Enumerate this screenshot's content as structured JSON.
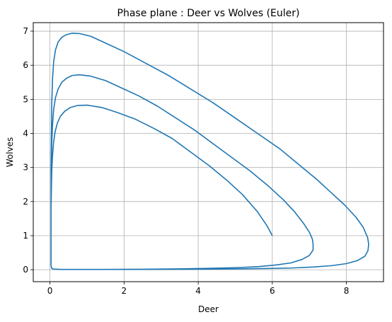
{
  "chart_data": {
    "type": "line",
    "title": "Phase plane : Deer vs Wolves (Euler)",
    "xlabel": "Deer",
    "ylabel": "Wolves",
    "xlim": [
      -0.45,
      9.0
    ],
    "ylim": [
      -0.35,
      7.25
    ],
    "x_ticks": [
      0,
      2,
      4,
      6,
      8
    ],
    "y_ticks": [
      0,
      1,
      2,
      3,
      4,
      5,
      6,
      7
    ],
    "grid": true,
    "legend": "none",
    "line_color": "#1f77b4",
    "series": [
      {
        "x": [
          6.0,
          5.85,
          5.6,
          5.2,
          4.8,
          4.3,
          3.8,
          3.3,
          2.8,
          2.3,
          1.8,
          1.4,
          1.0,
          0.75,
          0.55,
          0.4,
          0.28,
          0.2,
          0.14,
          0.1,
          0.07,
          0.05,
          0.04,
          0.03,
          0.03,
          0.03,
          0.03,
          0.03,
          0.04,
          0.06,
          0.1,
          0.3,
          0.8,
          1.5,
          2.5,
          3.5,
          4.3,
          5.0,
          5.6,
          6.1,
          6.5,
          6.8,
          7.0,
          7.1,
          7.1,
          7.08,
          7.0,
          6.85,
          6.6,
          6.3,
          5.9,
          5.4,
          4.9,
          4.4,
          3.9,
          3.4,
          2.9,
          2.4,
          1.9,
          1.5,
          1.1,
          0.8,
          0.6,
          0.45,
          0.32,
          0.22,
          0.15,
          0.1,
          0.07,
          0.05,
          0.04,
          0.03,
          0.03,
          0.03,
          0.03,
          0.03,
          0.04,
          0.06,
          0.1,
          0.3,
          1.0,
          2.0,
          3.0,
          4.0,
          5.0,
          5.8,
          6.5,
          7.1,
          7.6,
          8.0,
          8.3,
          8.5,
          8.58,
          8.6,
          8.57,
          8.45,
          8.25,
          7.95,
          7.6,
          7.2,
          6.7,
          6.2,
          5.6,
          5.0,
          4.4,
          3.8,
          3.2,
          2.6,
          2.0,
          1.5,
          1.1,
          0.8,
          0.6,
          0.45,
          0.32,
          0.22,
          0.15,
          0.1,
          0.07,
          0.05,
          0.04,
          0.03,
          0.03,
          0.03
        ],
        "y": [
          1.0,
          1.3,
          1.7,
          2.2,
          2.6,
          3.05,
          3.45,
          3.85,
          4.15,
          4.42,
          4.62,
          4.76,
          4.83,
          4.82,
          4.76,
          4.65,
          4.5,
          4.3,
          4.05,
          3.75,
          3.35,
          2.9,
          2.4,
          1.8,
          1.2,
          0.7,
          0.35,
          0.15,
          0.07,
          0.03,
          0.02,
          0.01,
          0.01,
          0.01,
          0.015,
          0.025,
          0.04,
          0.06,
          0.09,
          0.14,
          0.2,
          0.3,
          0.42,
          0.58,
          0.75,
          0.9,
          1.1,
          1.35,
          1.7,
          2.05,
          2.45,
          2.9,
          3.3,
          3.7,
          4.1,
          4.45,
          4.8,
          5.1,
          5.35,
          5.55,
          5.68,
          5.72,
          5.7,
          5.62,
          5.5,
          5.3,
          5.05,
          4.7,
          4.25,
          3.75,
          3.15,
          2.4,
          1.6,
          0.9,
          0.4,
          0.15,
          0.06,
          0.03,
          0.02,
          0.01,
          0.01,
          0.01,
          0.012,
          0.018,
          0.025,
          0.035,
          0.05,
          0.08,
          0.12,
          0.18,
          0.27,
          0.4,
          0.56,
          0.75,
          0.95,
          1.25,
          1.55,
          1.9,
          2.25,
          2.65,
          3.1,
          3.55,
          4.0,
          4.45,
          4.9,
          5.3,
          5.7,
          6.05,
          6.4,
          6.65,
          6.85,
          6.93,
          6.94,
          6.9,
          6.82,
          6.68,
          6.45,
          6.1,
          5.6,
          4.9,
          4.0,
          3.0,
          2.0,
          1.0
        ]
      }
    ]
  }
}
